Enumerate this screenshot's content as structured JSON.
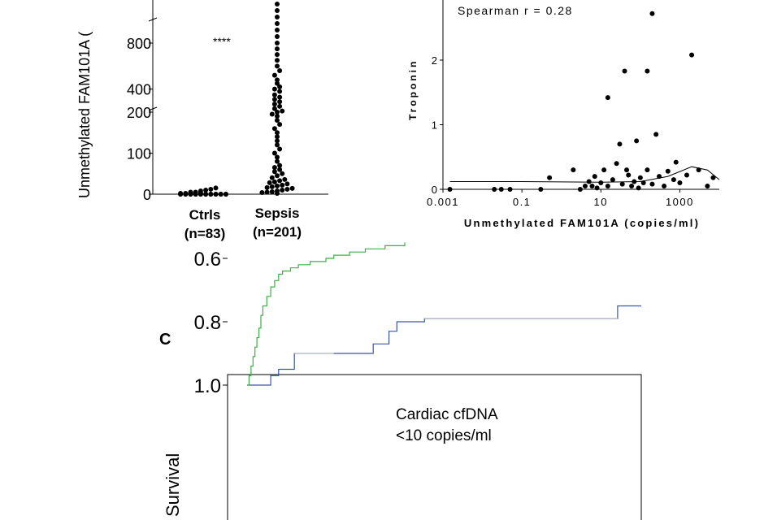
{
  "panel_a": {
    "ylabel": "Unmethylated FAM101A (",
    "significance": "****",
    "groups": [
      {
        "label": "Ctrls",
        "n_label": "(n=83)"
      },
      {
        "label": "Sepsis",
        "n_label": "(n=201)"
      }
    ]
  },
  "panel_b": {
    "annotation": "Spearman r = 0.28",
    "ylabel": "Troponin",
    "xlabel": "Unmethylated FAM101A (copies/ml)"
  },
  "panel_c": {
    "panel_letter": "C",
    "ylabel": "Survival",
    "legend_text_line1": "Cardiac cfDNA",
    "legend_text_line2": "<10 copies/ml"
  },
  "colors": {
    "blue_curve": "#3a55a8",
    "green_curve": "#3cb043",
    "points": "#000000"
  },
  "chart_data": [
    {
      "type": "scatter",
      "title": "",
      "xlabel": "",
      "ylabel": "Unmethylated FAM101A (",
      "categories": [
        "Ctrls",
        "Sepsis"
      ],
      "broken_axis": true,
      "ytick_labels": [
        "0",
        "100",
        "200",
        "400",
        "800"
      ],
      "ylim": [
        0,
        1100
      ],
      "series": [
        {
          "name": "Ctrls",
          "n": 83,
          "values": [
            0,
            0,
            0,
            0,
            0,
            0,
            0,
            0,
            0,
            0,
            0,
            0,
            0,
            0,
            0,
            0,
            0,
            0,
            0,
            0,
            2,
            2,
            2,
            3,
            3,
            5,
            5,
            8,
            10,
            12,
            15
          ]
        },
        {
          "name": "Sepsis",
          "n": 201,
          "values": [
            2,
            4,
            5,
            6,
            8,
            10,
            12,
            14,
            16,
            18,
            20,
            22,
            25,
            28,
            30,
            33,
            36,
            40,
            45,
            50,
            55,
            60,
            65,
            70,
            80,
            90,
            100,
            110,
            120,
            130,
            140,
            150,
            160,
            170,
            180,
            190,
            195,
            200,
            210,
            230,
            250,
            270,
            290,
            310,
            330,
            350,
            380,
            400,
            420,
            450,
            480,
            520,
            560,
            600,
            650,
            700,
            750,
            800,
            850,
            900,
            950,
            1000,
            1050,
            1100
          ]
        }
      ],
      "annotation": "****"
    },
    {
      "type": "scatter",
      "title": "",
      "xlabel": "Unmethylated FAM101A (copies/ml)",
      "ylabel": "Troponin",
      "x_scale": "log",
      "xlim": [
        0.001,
        10000
      ],
      "ylim": [
        0,
        3
      ],
      "x_tick_labels": [
        "0.001",
        "0.1",
        "10",
        "1000"
      ],
      "y_tick_labels": [
        "0",
        "1",
        "2"
      ],
      "annotation": "Spearman r = 0.28",
      "points": [
        {
          "x": 0.0015,
          "y": 0.0
        },
        {
          "x": 0.02,
          "y": 0.0
        },
        {
          "x": 0.03,
          "y": 0.0
        },
        {
          "x": 0.05,
          "y": 0.0
        },
        {
          "x": 0.3,
          "y": 0.0
        },
        {
          "x": 0.5,
          "y": 0.18
        },
        {
          "x": 2,
          "y": 0.3
        },
        {
          "x": 3,
          "y": 0.0
        },
        {
          "x": 4,
          "y": 0.05
        },
        {
          "x": 5,
          "y": 0.12
        },
        {
          "x": 6,
          "y": 0.05
        },
        {
          "x": 7,
          "y": 0.2
        },
        {
          "x": 8,
          "y": 0.02
        },
        {
          "x": 10,
          "y": 0.1
        },
        {
          "x": 12,
          "y": 0.3
        },
        {
          "x": 15,
          "y": 0.05
        },
        {
          "x": 15,
          "y": 1.42
        },
        {
          "x": 20,
          "y": 0.15
        },
        {
          "x": 25,
          "y": 0.4
        },
        {
          "x": 30,
          "y": 0.7
        },
        {
          "x": 35,
          "y": 0.08
        },
        {
          "x": 40,
          "y": 1.83
        },
        {
          "x": 45,
          "y": 0.3
        },
        {
          "x": 50,
          "y": 0.22
        },
        {
          "x": 60,
          "y": 0.05
        },
        {
          "x": 70,
          "y": 0.12
        },
        {
          "x": 80,
          "y": 0.75
        },
        {
          "x": 90,
          "y": 0.02
        },
        {
          "x": 100,
          "y": 0.18
        },
        {
          "x": 120,
          "y": 0.1
        },
        {
          "x": 150,
          "y": 0.3
        },
        {
          "x": 150,
          "y": 1.83
        },
        {
          "x": 200,
          "y": 2.72
        },
        {
          "x": 200,
          "y": 0.08
        },
        {
          "x": 250,
          "y": 0.85
        },
        {
          "x": 300,
          "y": 0.2
        },
        {
          "x": 400,
          "y": 0.05
        },
        {
          "x": 500,
          "y": 0.28
        },
        {
          "x": 700,
          "y": 0.15
        },
        {
          "x": 800,
          "y": 0.42
        },
        {
          "x": 1000,
          "y": 0.1
        },
        {
          "x": 1500,
          "y": 0.22
        },
        {
          "x": 2000,
          "y": 2.08
        },
        {
          "x": 3000,
          "y": 0.3
        },
        {
          "x": 5000,
          "y": 0.05
        },
        {
          "x": 7000,
          "y": 0.18
        }
      ]
    },
    {
      "type": "line",
      "title": "",
      "xlabel": "",
      "ylabel": "Survival",
      "step": true,
      "y_tick_labels": [
        "1.0",
        "0.8",
        "0.6"
      ],
      "ylim": [
        0.55,
        1.0
      ],
      "series": [
        {
          "name": "Cardiac cfDNA <10 copies/ml",
          "x": [
            0,
            0.06,
            0.08,
            0.12,
            0.28,
            0.32,
            0.36,
            0.38,
            0.45,
            0.94,
            1.0
          ],
          "values": [
            1.0,
            0.97,
            0.95,
            0.9,
            0.9,
            0.87,
            0.83,
            0.8,
            0.79,
            0.75,
            0.75
          ]
        },
        {
          "name": "",
          "x": [
            0,
            0.005,
            0.01,
            0.015,
            0.02,
            0.025,
            0.03,
            0.035,
            0.04,
            0.05,
            0.06,
            0.07,
            0.08,
            0.09,
            0.11,
            0.13,
            0.16,
            0.2,
            0.22,
            0.26,
            0.3,
            0.35,
            0.4
          ],
          "values": [
            1.0,
            0.97,
            0.94,
            0.91,
            0.88,
            0.85,
            0.82,
            0.78,
            0.75,
            0.72,
            0.69,
            0.67,
            0.65,
            0.64,
            0.63,
            0.62,
            0.61,
            0.6,
            0.59,
            0.58,
            0.57,
            0.56,
            0.55
          ]
        }
      ]
    }
  ]
}
